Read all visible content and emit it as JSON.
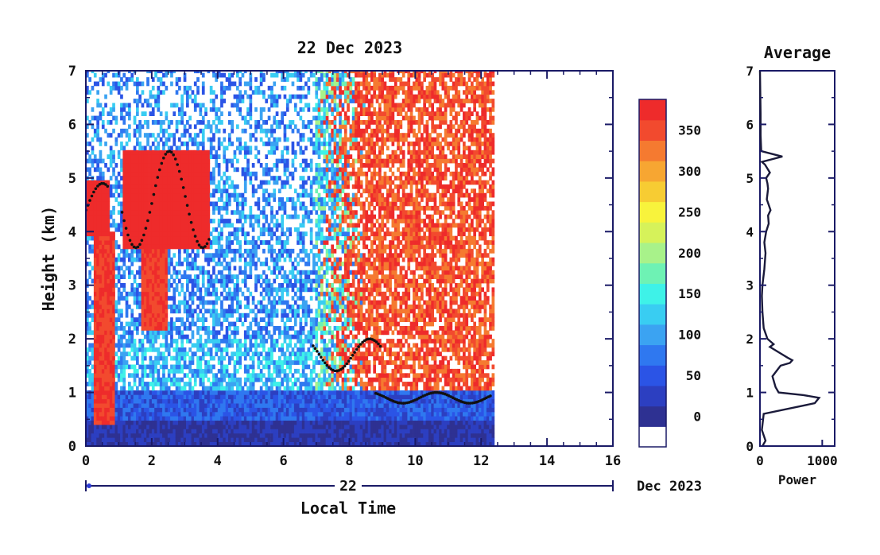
{
  "chart_data": [
    {
      "type": "heatmap",
      "title": "22 Dec 2023",
      "xlabel": "Local Time",
      "ylabel": "Height (km)",
      "xlim": [
        0,
        16
      ],
      "ylim": [
        0,
        7
      ],
      "x_ticks": [
        "0",
        "2",
        "4",
        "6",
        "8",
        "10",
        "12",
        "14",
        "16"
      ],
      "y_ticks": [
        "0",
        "1",
        "2",
        "3",
        "4",
        "5",
        "6",
        "7"
      ],
      "date_axis": {
        "day": "22",
        "month_year": "Dec 2023"
      },
      "data_extent_hours": [
        0,
        12.4
      ],
      "colorbar": {
        "ticks": [
          "0",
          "50",
          "100",
          "150",
          "200",
          "250",
          "300",
          "350"
        ],
        "colors": [
          "#ffffff",
          "#2e3192",
          "#2c3fc1",
          "#2b54e6",
          "#2f78f0",
          "#3ba3f2",
          "#39cdf2",
          "#3ef2e8",
          "#6ef2b4",
          "#a8f28a",
          "#d6f25a",
          "#f8f33c",
          "#f7cc33",
          "#f7a632",
          "#f57a30",
          "#f24a2e",
          "#ee2b2b"
        ]
      },
      "cloud_layers": [
        {
          "from": 0.0,
          "to": 0.7,
          "base_km": 3.9,
          "top_km": 4.9
        },
        {
          "from": 1.1,
          "to": 3.8,
          "base_km": 3.7,
          "top_km": 5.5
        },
        {
          "from": 6.9,
          "to": 9.0,
          "base_km": 1.4,
          "top_km": 2.0
        },
        {
          "from": 8.8,
          "to": 12.3,
          "base_km": 0.8,
          "top_km": 1.0
        }
      ]
    },
    {
      "type": "line",
      "title": "Average",
      "xlabel": "Power",
      "ylabel": "",
      "xlim": [
        0,
        1200
      ],
      "ylim": [
        0,
        7
      ],
      "x_ticks": [
        "0",
        "1000"
      ],
      "y_ticks": [
        "0",
        "1",
        "2",
        "3",
        "4",
        "5",
        "6",
        "7"
      ],
      "series": [
        {
          "x": [
            40,
            90,
            30,
            60,
            880,
            950,
            700,
            300,
            250,
            200,
            330,
            480,
            520,
            440,
            300,
            160,
            220,
            120,
            60,
            40,
            30,
            40,
            70,
            90,
            70,
            100,
            140,
            130,
            170,
            140,
            110,
            120,
            130,
            120,
            100,
            160,
            80,
            30,
            360,
            20,
            10,
            10,
            0
          ],
          "y": [
            0.0,
            0.1,
            0.3,
            0.6,
            0.8,
            0.9,
            0.95,
            1.0,
            1.1,
            1.3,
            1.5,
            1.55,
            1.6,
            1.65,
            1.75,
            1.85,
            1.9,
            2.0,
            2.2,
            2.5,
            2.8,
            3.0,
            3.3,
            3.6,
            3.8,
            4.0,
            4.15,
            4.3,
            4.4,
            4.5,
            4.6,
            4.7,
            4.8,
            4.9,
            5.0,
            5.1,
            5.25,
            5.3,
            5.4,
            5.5,
            5.8,
            6.2,
            7.0
          ]
        }
      ]
    }
  ]
}
